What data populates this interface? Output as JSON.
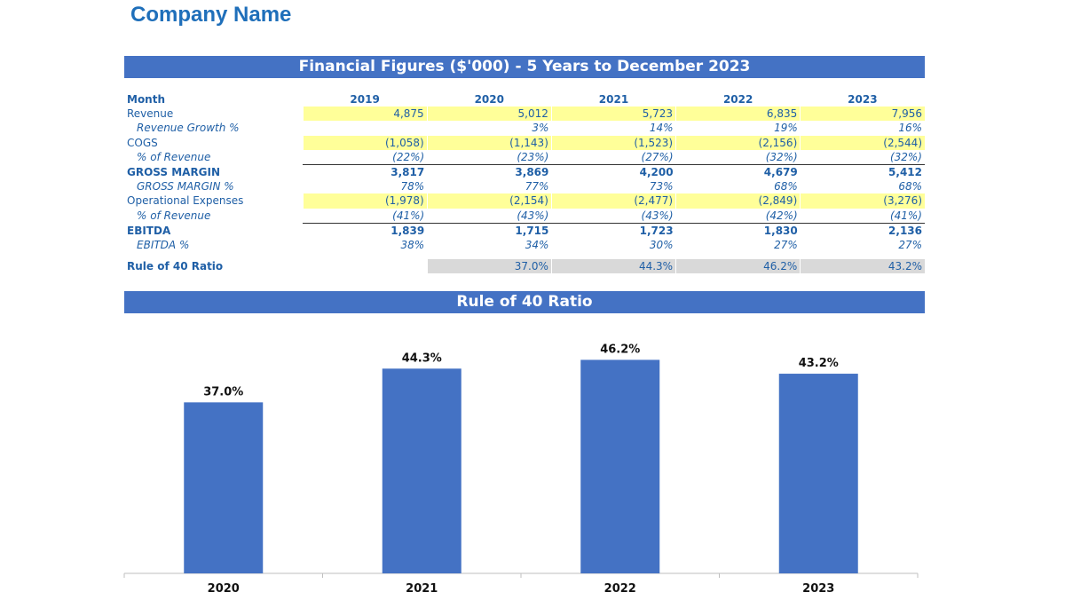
{
  "company_name": "Company Name",
  "table": {
    "title": "Financial Figures ($'000) - 5 Years to December 2023",
    "month_label": "Month",
    "years": [
      "2019",
      "2020",
      "2021",
      "2022",
      "2023"
    ],
    "rows": [
      {
        "label": "Revenue",
        "values": [
          "4,875",
          "5,012",
          "5,723",
          "6,835",
          "7,956"
        ]
      },
      {
        "label": "Revenue Growth %",
        "values": [
          "",
          "3%",
          "14%",
          "19%",
          "16%"
        ]
      },
      {
        "label": "COGS",
        "values": [
          "(1,058)",
          "(1,143)",
          "(1,523)",
          "(2,156)",
          "(2,544)"
        ]
      },
      {
        "label": "% of Revenue",
        "values": [
          "(22%)",
          "(23%)",
          "(27%)",
          "(32%)",
          "(32%)"
        ]
      },
      {
        "label": "GROSS MARGIN",
        "values": [
          "3,817",
          "3,869",
          "4,200",
          "4,679",
          "5,412"
        ]
      },
      {
        "label": "GROSS MARGIN %",
        "values": [
          "78%",
          "77%",
          "73%",
          "68%",
          "68%"
        ]
      },
      {
        "label": "Operational Expenses",
        "values": [
          "(1,978)",
          "(2,154)",
          "(2,477)",
          "(2,849)",
          "(3,276)"
        ]
      },
      {
        "label": "% of Revenue",
        "values": [
          "(41%)",
          "(43%)",
          "(43%)",
          "(42%)",
          "(41%)"
        ]
      },
      {
        "label": "EBITDA",
        "values": [
          "1,839",
          "1,715",
          "1,723",
          "1,830",
          "2,136"
        ]
      },
      {
        "label": "EBITDA %",
        "values": [
          "38%",
          "34%",
          "30%",
          "27%",
          "27%"
        ]
      }
    ],
    "ratio_row": {
      "label": "Rule of 40 Ratio",
      "values": [
        "",
        "37.0%",
        "44.3%",
        "46.2%",
        "43.2%"
      ]
    }
  },
  "colors": {
    "accent": "#4472c4",
    "highlight": "#ffff99",
    "ratio_fill": "#d9d9d9",
    "text_blue": "#1f5fa6"
  },
  "chart_data": {
    "type": "bar",
    "title": "Rule of 40 Ratio",
    "categories": [
      "2020",
      "2021",
      "2022",
      "2023"
    ],
    "values": [
      37.0,
      44.3,
      46.2,
      43.2
    ],
    "value_labels": [
      "37.0%",
      "44.3%",
      "46.2%",
      "43.2%"
    ],
    "ylim": [
      0,
      50
    ],
    "grid": false,
    "color": "#4472c4"
  }
}
